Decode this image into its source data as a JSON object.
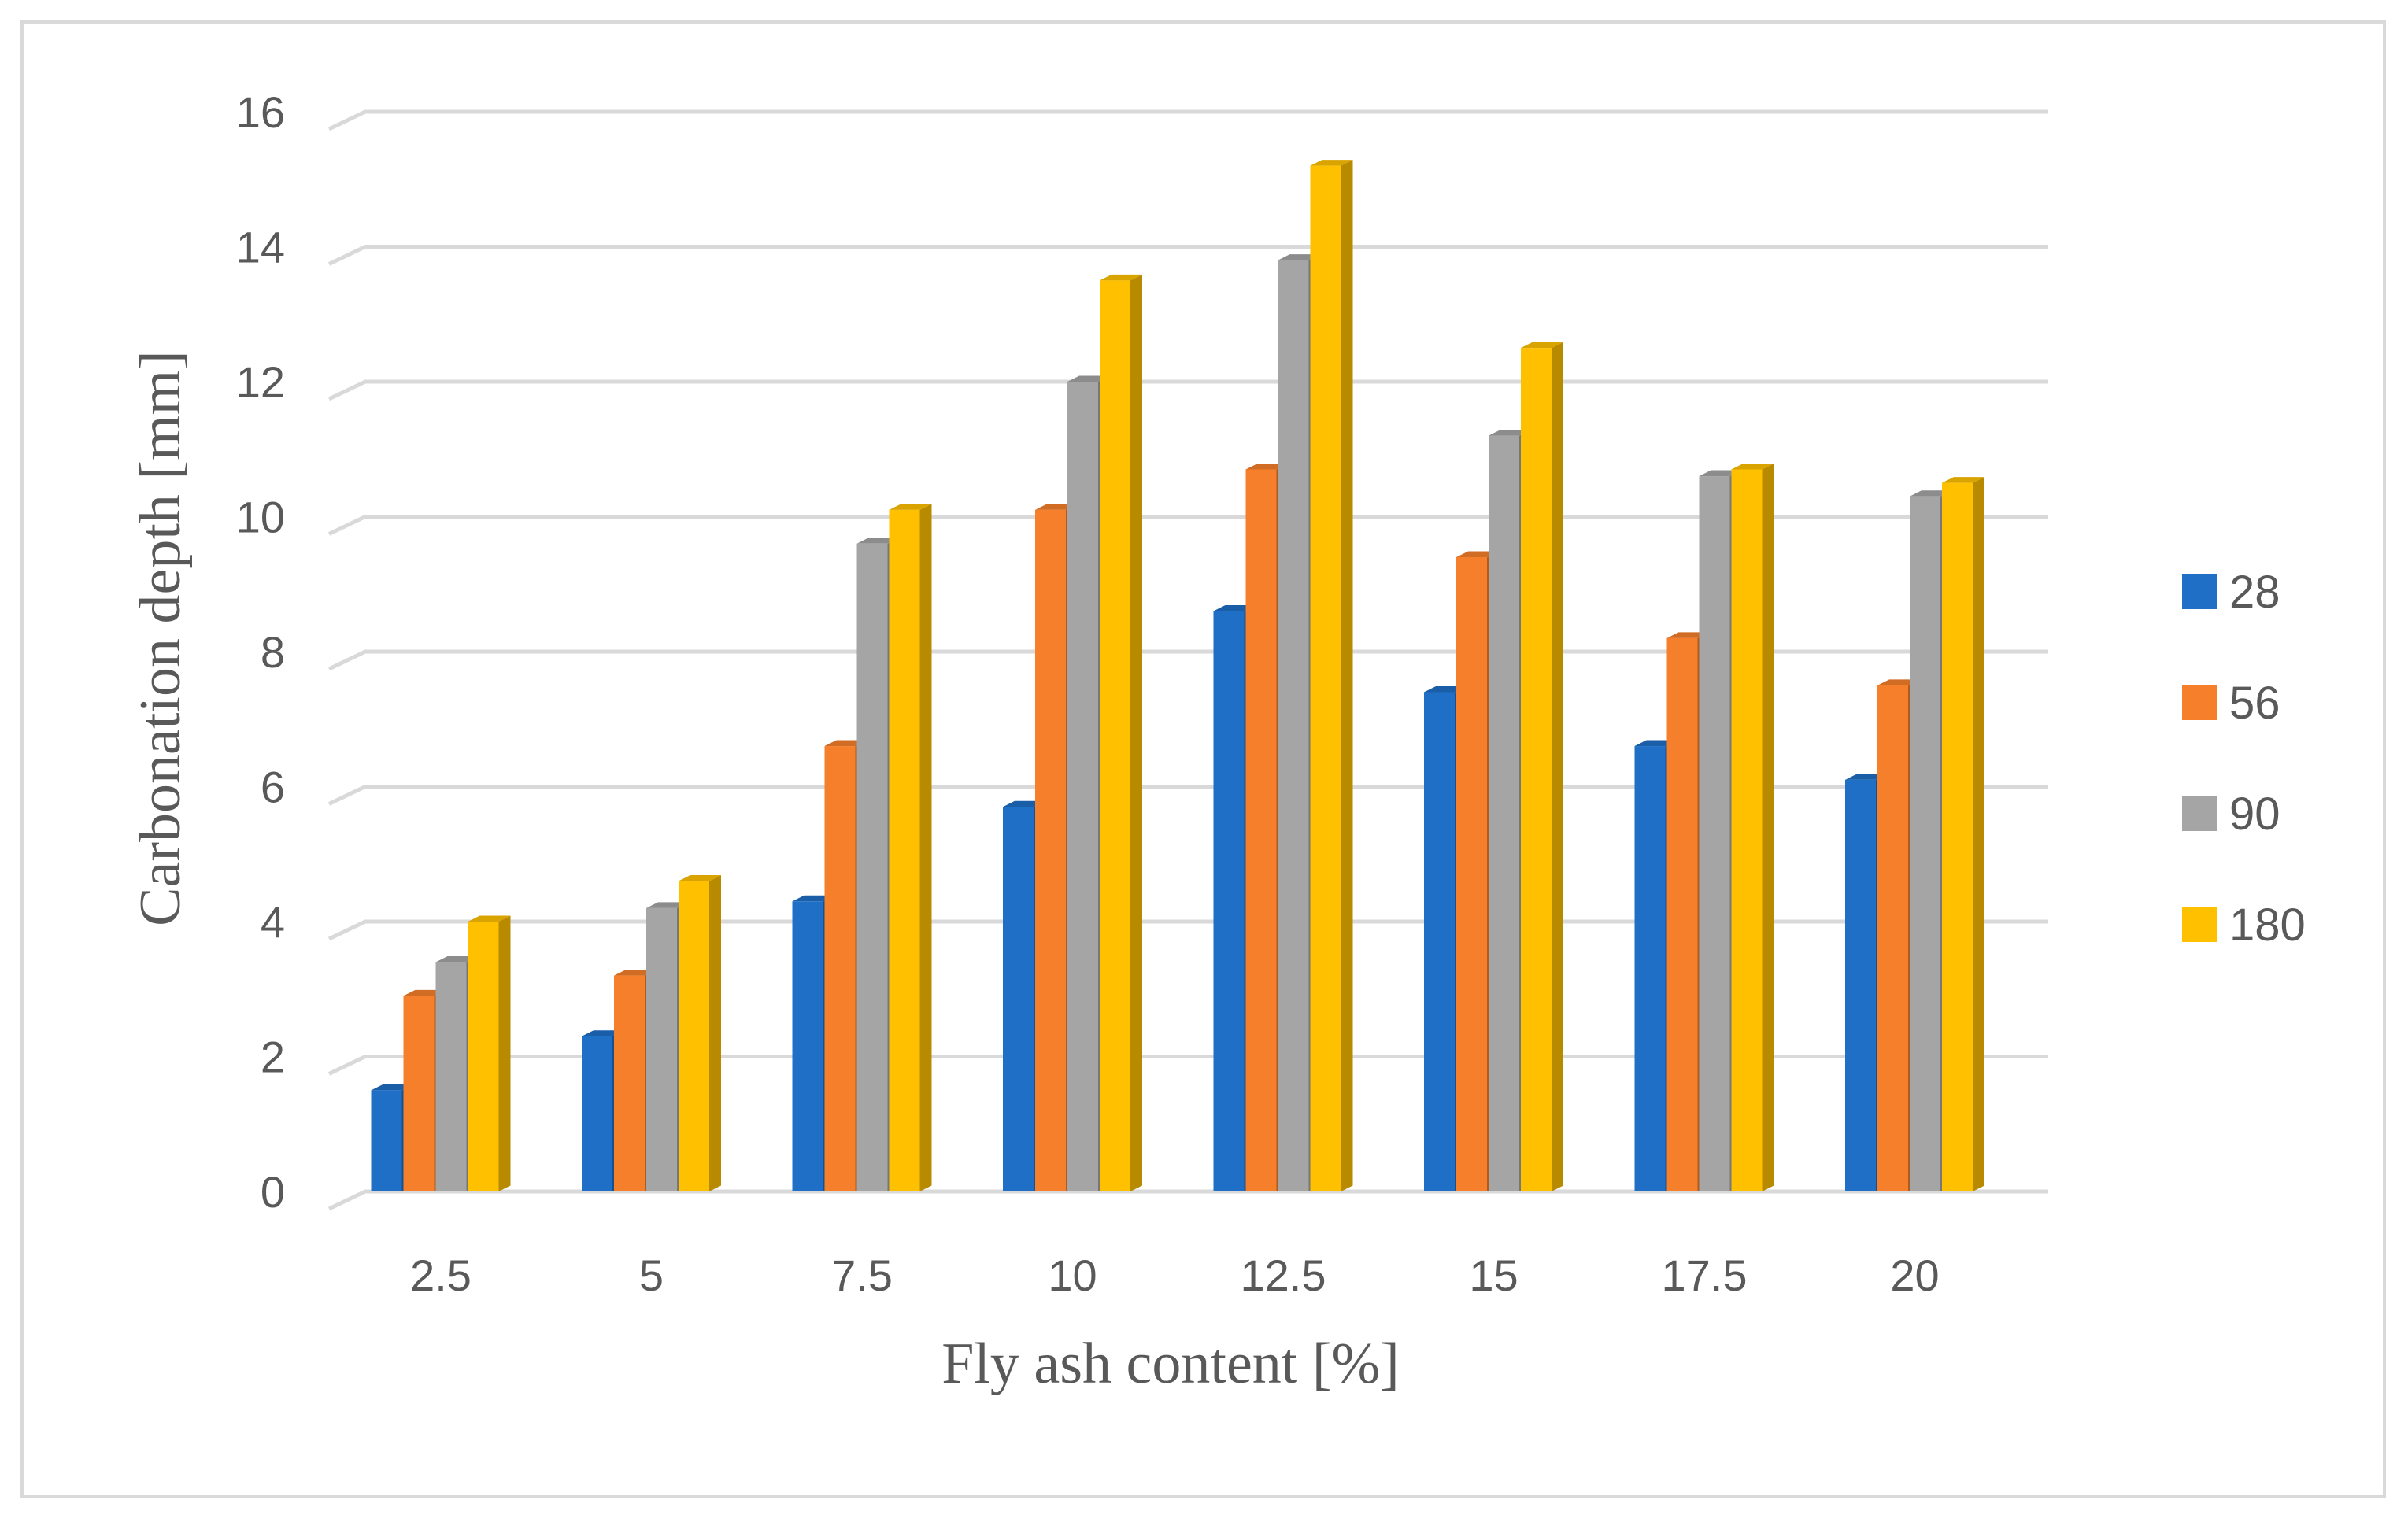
{
  "chart_data": {
    "type": "bar",
    "title": "",
    "xlabel": "Fly ash content [%]",
    "ylabel": "Carbonation depth [mm]",
    "categories": [
      "2.5",
      "5",
      "7.5",
      "10",
      "12.5",
      "15",
      "17.5",
      "20"
    ],
    "series": [
      {
        "name": "28",
        "color": "#1f6fc6",
        "values": [
          1.5,
          2.3,
          4.3,
          5.7,
          8.6,
          7.4,
          6.6,
          6.1
        ]
      },
      {
        "name": "56",
        "color": "#f57f2a",
        "values": [
          2.9,
          3.2,
          6.6,
          10.1,
          10.7,
          9.4,
          8.2,
          7.5
        ]
      },
      {
        "name": "90",
        "color": "#a5a5a5",
        "values": [
          3.4,
          4.2,
          9.6,
          12.0,
          13.8,
          11.2,
          10.6,
          10.3
        ]
      },
      {
        "name": "180",
        "color": "#ffc000",
        "values": [
          4.0,
          4.6,
          10.1,
          13.5,
          15.2,
          12.5,
          10.7,
          10.5
        ]
      }
    ],
    "yticks": [
      "0",
      "2",
      "4",
      "6",
      "8",
      "10",
      "12",
      "14",
      "16"
    ],
    "ylim": [
      0,
      16
    ],
    "grid": true,
    "legend": "right",
    "bar_style": "3d-column"
  }
}
